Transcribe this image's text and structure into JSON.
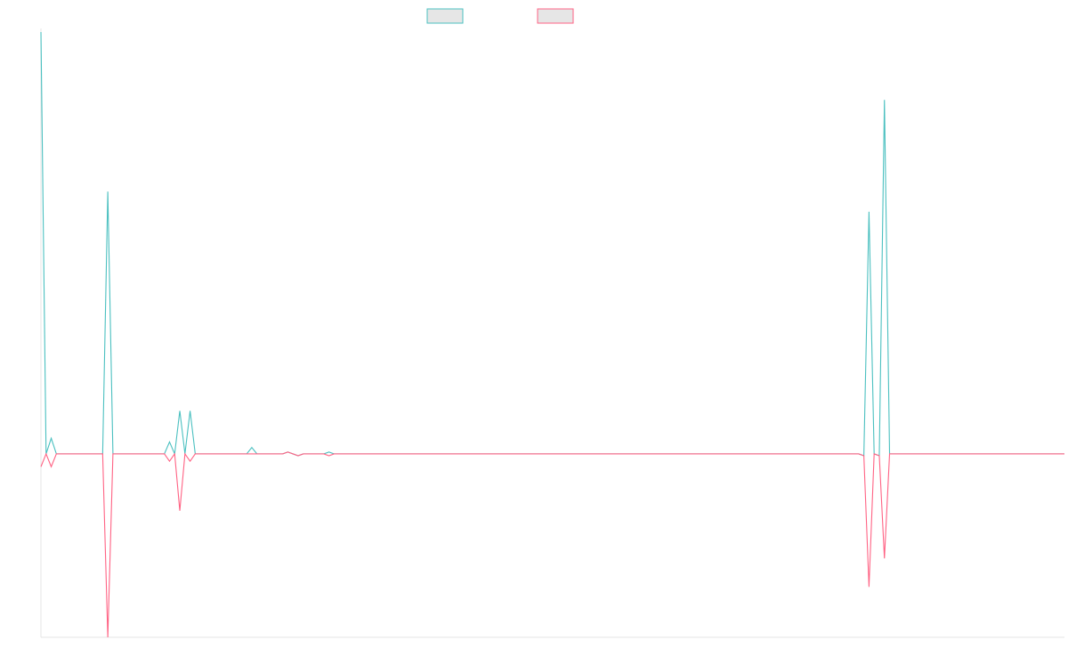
{
  "chart_data": {
    "type": "line",
    "title": "",
    "xlabel": "",
    "ylabel": "",
    "grid": false,
    "legend_placement": "top-center",
    "ylim": [
      -200,
      460
    ],
    "colors": {
      "series_a": "#4bc0c0",
      "series_b": "#ff6384",
      "swatch_fill": "#e6e6e6",
      "axis": "#e6e6e6"
    },
    "series": [
      {
        "color": "#4bc0c0",
        "values": [
          460,
          0,
          17,
          0,
          0,
          0,
          0,
          0,
          0,
          0,
          0,
          0,
          0,
          286,
          0,
          0,
          0,
          0,
          0,
          0,
          0,
          0,
          0,
          0,
          0,
          13,
          0,
          47,
          0,
          47,
          0,
          0,
          0,
          0,
          0,
          0,
          0,
          0,
          0,
          0,
          0,
          7,
          0,
          0,
          0,
          0,
          0,
          0,
          0,
          0,
          0,
          0,
          0,
          0,
          0,
          0,
          0,
          0,
          0,
          0,
          0,
          0,
          0,
          0,
          0,
          0,
          0,
          0,
          0,
          0,
          0,
          0,
          0,
          0,
          0,
          0,
          0,
          0,
          0,
          0,
          0,
          0,
          0,
          0,
          0,
          0,
          0,
          0,
          0,
          0,
          0,
          0,
          0,
          0,
          0,
          0,
          0,
          0,
          0,
          0,
          0,
          0,
          0,
          0,
          0,
          0,
          0,
          0,
          0,
          0,
          0,
          0,
          0,
          0,
          0,
          0,
          0,
          0,
          0,
          0,
          0,
          0,
          0,
          0,
          0,
          0,
          0,
          0,
          0,
          0,
          0,
          0,
          0,
          0,
          0,
          0,
          0,
          0,
          0,
          0,
          0,
          0,
          0,
          0,
          0,
          0,
          0,
          0,
          0,
          0,
          0,
          0,
          0,
          0,
          0,
          0,
          0,
          0,
          0,
          0,
          0,
          0,
          0,
          0,
          0,
          0,
          0,
          0,
          0,
          0,
          0,
          0,
          0,
          0,
          0,
          0,
          0,
          0,
          0,
          0,
          0,
          0,
          0,
          0,
          0,
          0,
          0,
          0,
          0,
          0,
          0,
          0,
          0,
          0,
          0,
          0,
          0,
          0,
          0,
          0,
          0,
          0,
          0,
          0,
          0,
          0,
          0,
          0,
          0,
          0,
          0,
          0,
          0,
          0,
          0,
          0,
          0,
          0,
          0,
          0,
          0,
          0,
          0,
          0,
          0,
          0,
          0,
          0,
          0,
          0,
          0,
          0,
          0,
          0,
          0,
          0,
          0,
          0,
          0,
          0,
          0,
          0,
          0,
          0,
          0,
          0,
          0,
          0,
          0,
          0
        ]
      },
      {
        "color": "#ff6384",
        "values": [
          -14,
          0,
          -14,
          0,
          0,
          0,
          0,
          0,
          0,
          0,
          0,
          0,
          0,
          -200,
          0,
          0,
          0,
          0,
          0,
          0,
          0,
          0,
          0,
          0,
          0,
          -8,
          0,
          -62,
          0,
          -8,
          0,
          0,
          0,
          0,
          0,
          0,
          0,
          0,
          0,
          0,
          0,
          0,
          0,
          0,
          0,
          0,
          0,
          0,
          0,
          0,
          0,
          0,
          0,
          0,
          0,
          0,
          0,
          0,
          0,
          0,
          0,
          0,
          0,
          0,
          0,
          0,
          0,
          0,
          0,
          0,
          0,
          0,
          0,
          0,
          0,
          0,
          0,
          0,
          0,
          0,
          0,
          0,
          0,
          0,
          0,
          0,
          0,
          0,
          0,
          0,
          0,
          0,
          0,
          0,
          0,
          0,
          0,
          0,
          0,
          0,
          0,
          0,
          0,
          0,
          0,
          0,
          0,
          0,
          0,
          0,
          0,
          0,
          0,
          0,
          0,
          0,
          0,
          0,
          0,
          0,
          0,
          0,
          0,
          0,
          0,
          0,
          0,
          0,
          0,
          0,
          0,
          0,
          0,
          0,
          0,
          0,
          0,
          0,
          0,
          0,
          0,
          0,
          0,
          0,
          0,
          0,
          0,
          0,
          0,
          0,
          0,
          0,
          0,
          0,
          0,
          0,
          0,
          0,
          0,
          0,
          0,
          0,
          0,
          0,
          0,
          0,
          0,
          0,
          0,
          0,
          0,
          0,
          0,
          0,
          0,
          0,
          0,
          0,
          0,
          0,
          0,
          0,
          0,
          0,
          0,
          0,
          0,
          0,
          0,
          0,
          0,
          0,
          0,
          0,
          0,
          0,
          0,
          0,
          0,
          0,
          0,
          0,
          0,
          0,
          0,
          0,
          0,
          0,
          0,
          0,
          0,
          0,
          0,
          0,
          0,
          0,
          0,
          0,
          0,
          0,
          0,
          0,
          0,
          0,
          0,
          0,
          0,
          0,
          0,
          0,
          0,
          0,
          0,
          0,
          0,
          0,
          0,
          0,
          0,
          0,
          0,
          0,
          0,
          0,
          0,
          0,
          0,
          0,
          0,
          0,
          0
        ]
      }
    ],
    "sparse_points": {
      "series_a": [
        [
          48,
          2
        ],
        [
          49,
          0
        ],
        [
          50,
          -2
        ],
        [
          56,
          2
        ],
        [
          57,
          0
        ],
        [
          160,
          -2
        ],
        [
          161,
          264
        ],
        [
          162,
          0
        ],
        [
          163,
          -2
        ],
        [
          164,
          386
        ],
        [
          165,
          0
        ]
      ],
      "series_b": [
        [
          48,
          2
        ],
        [
          49,
          0
        ],
        [
          50,
          -2
        ],
        [
          56,
          -2
        ],
        [
          57,
          0
        ],
        [
          160,
          -2
        ],
        [
          161,
          -145
        ],
        [
          162,
          0
        ],
        [
          163,
          -2
        ],
        [
          164,
          -114
        ],
        [
          165,
          0
        ]
      ]
    },
    "x_count": 200
  }
}
